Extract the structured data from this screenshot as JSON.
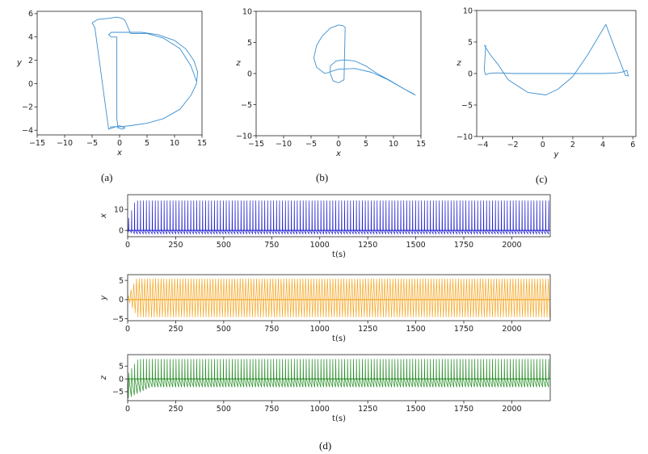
{
  "captions": [
    "(a)",
    "(b)",
    "(c)",
    "(d)"
  ],
  "colors": {
    "phase": "#3b8fd0",
    "x_series": "#1f1fd0",
    "y_series": "#f5a623",
    "z_series": "#1f8a1f"
  },
  "chart_data": [
    {
      "type": "line",
      "caption": "(a)",
      "xlabel": "x",
      "ylabel": "y",
      "xlim": [
        -15,
        15
      ],
      "ylim": [
        -4.4,
        6.2
      ],
      "xticks": [
        "−15",
        "−10",
        "−5",
        "0",
        "5",
        "10",
        "15"
      ],
      "yticks": [
        "−4",
        "−2",
        "0",
        "2",
        "4",
        "6"
      ],
      "grid": false,
      "series": [
        {
          "x": [
            -1.8,
            -1.5,
            -1,
            0,
            2,
            5,
            8,
            11,
            13,
            14,
            14.2,
            13.5,
            12,
            10,
            7,
            4,
            1,
            -0.5,
            -1.5,
            -2,
            -1.5,
            -0.5,
            -0.5,
            -0.5,
            -0.5,
            -0.3,
            0.5,
            1,
            0,
            -2,
            -4.5,
            -5,
            -4,
            -2,
            -0.5,
            0.5,
            1,
            2,
            5,
            8,
            11,
            13,
            14
          ],
          "y": [
            -3.8,
            -3.7,
            -3.7,
            -3.7,
            -3.6,
            -3.4,
            -3,
            -2.2,
            -1,
            0,
            1,
            2,
            3,
            3.7,
            4.2,
            4.4,
            4.4,
            4.4,
            4.4,
            4.2,
            4,
            4,
            3,
            0,
            -3,
            -3.8,
            -3.9,
            -3.8,
            -3.6,
            -3.9,
            4.8,
            5.2,
            5.5,
            5.6,
            5.7,
            5.6,
            5.4,
            4.3,
            4.3,
            3.9,
            3.0,
            1.5,
            0.2
          ]
        }
      ]
    },
    {
      "type": "line",
      "caption": "(b)",
      "xlabel": "x",
      "ylabel": "z",
      "xlim": [
        -15,
        15
      ],
      "ylim": [
        -10,
        10
      ],
      "xticks": [
        "−15",
        "−10",
        "−5",
        "0",
        "5",
        "10",
        "15"
      ],
      "yticks": [
        "−10",
        "−5",
        "0",
        "5",
        "10"
      ],
      "grid": false,
      "series": [
        {
          "x": [
            14,
            12,
            9,
            6,
            3,
            0,
            -2.5,
            -4,
            -4.5,
            -4,
            -3,
            -1.5,
            0,
            0.8,
            1.2,
            1,
            0,
            -1,
            -1.5,
            -1.5,
            -0.5,
            1,
            3,
            5,
            7,
            9.5,
            12,
            13.5,
            14
          ],
          "y": [
            -3.5,
            -2.5,
            -1,
            0.2,
            0.8,
            0.7,
            0,
            1,
            2.5,
            4.5,
            6,
            7.3,
            7.8,
            7.7,
            7.4,
            -1,
            -1.5,
            -1.2,
            0,
            1.2,
            2,
            2.2,
            2,
            1.2,
            0,
            -1.2,
            -2.5,
            -3.2,
            -3.5
          ]
        }
      ]
    },
    {
      "type": "line",
      "caption": "(c)",
      "xlabel": "y",
      "ylabel": "z",
      "xlim": [
        -4.4,
        6.2
      ],
      "ylim": [
        -10,
        10
      ],
      "xticks": [
        "−4",
        "−2",
        "0",
        "2",
        "4",
        "6"
      ],
      "yticks": [
        "−10",
        "−5",
        "0",
        "5",
        "10"
      ],
      "grid": false,
      "series": [
        {
          "x": [
            -3.8,
            -3.9,
            -3.8,
            -3.6,
            -3.1,
            -2,
            0,
            2,
            4,
            5,
            5.4,
            5.6,
            5.7,
            5.5,
            4.8,
            4.2,
            4,
            3,
            2,
            1,
            0.2,
            -1,
            -2.3,
            -3,
            -3.5,
            -3.9
          ],
          "y": [
            4.5,
            0.5,
            -0.2,
            0,
            0.1,
            0,
            0,
            0,
            0,
            0.1,
            0.3,
            0.5,
            -0.4,
            -0.3,
            4,
            7.8,
            7,
            3,
            -0.5,
            -2.5,
            -3.4,
            -3,
            -1,
            1.5,
            3,
            4.5
          ]
        }
      ]
    },
    {
      "type": "line",
      "caption": "(d)",
      "xlabel": "t(s)",
      "xlim": [
        0,
        2200
      ],
      "xticks": [
        "0",
        "250",
        "500",
        "750",
        "1000",
        "1250",
        "1500",
        "1750",
        "2000"
      ],
      "panels": [
        {
          "ylabel": "x",
          "ylim": [
            -3,
            17
          ],
          "yticks": [
            "0",
            "10"
          ],
          "color": "#1f1fd0",
          "ref": "x"
        },
        {
          "ylabel": "y",
          "ylim": [
            -5.5,
            6.5
          ],
          "yticks": [
            "−5",
            "0",
            "5"
          ],
          "color": "#f5a623",
          "ref": "y"
        },
        {
          "ylabel": "z",
          "ylim": [
            -8.5,
            9.5
          ],
          "yticks": [
            "−5",
            "0",
            "5"
          ],
          "color": "#1f8a1f",
          "ref": "z"
        }
      ]
    }
  ]
}
